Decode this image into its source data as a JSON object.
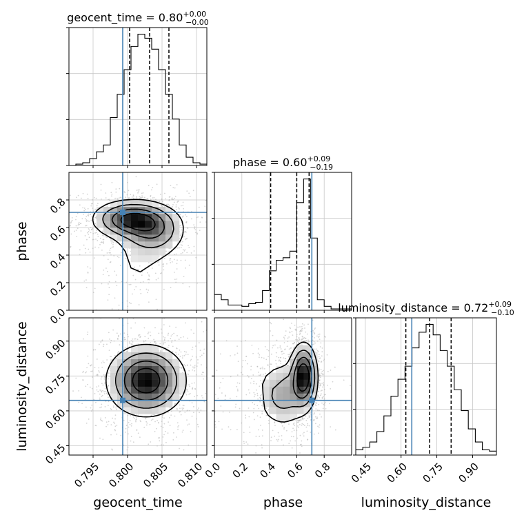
{
  "chart_data": {
    "type": "corner",
    "colors": {
      "truth": "#4682b4",
      "hist": "#000000",
      "grid": "#c8c8c8",
      "scatter": "#b0b0b0"
    },
    "parameters": [
      {
        "name": "geocent_time",
        "range": [
          0.7915,
          0.8115
        ],
        "ticks": [
          "0.795",
          "0.800",
          "0.805",
          "0.810"
        ],
        "tick_values": [
          0.795,
          0.8,
          0.805,
          0.81
        ],
        "truth": 0.7993,
        "quantiles": [
          0.8003,
          0.8032,
          0.806
        ],
        "title": {
          "prefix": "geocent_time = 0.80",
          "sup": "+0.00",
          "sub": "−0.00"
        }
      },
      {
        "name": "phase",
        "range": [
          0.0,
          1.0
        ],
        "ticks": [
          "0.0",
          "0.2",
          "0.4",
          "0.6",
          "0.8"
        ],
        "tick_values": [
          0.0,
          0.2,
          0.4,
          0.6,
          0.8
        ],
        "truth": 0.71,
        "quantiles": [
          0.41,
          0.6,
          0.69
        ],
        "title": {
          "prefix": "phase = 0.60",
          "sup": "+0.09",
          "sub": "−0.19"
        }
      },
      {
        "name": "luminosity_distance",
        "range": [
          0.41,
          1.0
        ],
        "ticks": [
          "0.45",
          "0.60",
          "0.75",
          "0.90"
        ],
        "tick_values": [
          0.45,
          0.6,
          0.75,
          0.9
        ],
        "truth": 0.645,
        "quantiles": [
          0.62,
          0.72,
          0.81
        ],
        "title": {
          "prefix": "luminosity_distance = 0.72",
          "sup": "+0.09",
          "sub": "−0.10"
        }
      }
    ],
    "histograms": [
      {
        "param": "geocent_time",
        "edges": [
          0.7915,
          0.7925,
          0.7935,
          0.7945,
          0.7955,
          0.7965,
          0.7975,
          0.7985,
          0.7995,
          0.8005,
          0.8015,
          0.8025,
          0.8035,
          0.8045,
          0.8055,
          0.8065,
          0.8075,
          0.8085,
          0.8095,
          0.8105,
          0.8115
        ],
        "counts": [
          0,
          1,
          2,
          5,
          10,
          15,
          35,
          52,
          70,
          87,
          96,
          93,
          85,
          70,
          52,
          34,
          15,
          6,
          2,
          1
        ]
      },
      {
        "param": "phase",
        "edges": [
          0.0,
          0.05,
          0.1,
          0.15,
          0.2,
          0.25,
          0.3,
          0.35,
          0.4,
          0.45,
          0.5,
          0.55,
          0.6,
          0.65,
          0.7,
          0.75,
          0.8,
          0.85,
          0.9,
          0.95,
          1.0
        ],
        "counts": [
          12,
          8,
          4,
          4,
          3,
          5,
          6,
          15,
          30,
          38,
          40,
          45,
          82,
          100,
          55,
          8,
          3,
          1,
          1,
          1
        ]
      },
      {
        "param": "luminosity_distance",
        "edges": [
          0.41,
          0.4395,
          0.469,
          0.4985,
          0.528,
          0.5575,
          0.587,
          0.6165,
          0.646,
          0.6755,
          0.705,
          0.7345,
          0.764,
          0.7935,
          0.823,
          0.8525,
          0.882,
          0.9115,
          0.941,
          0.9705,
          1.0
        ],
        "counts": [
          4,
          6,
          10,
          18,
          30,
          45,
          58,
          68,
          82,
          94,
          100,
          92,
          80,
          68,
          50,
          34,
          20,
          10,
          4,
          3
        ]
      }
    ],
    "panels_2d": [
      {
        "x": "geocent_time",
        "y": "phase",
        "blobs": [
          {
            "cx": 0.8005,
            "cy": 0.66,
            "sx": 0.0028,
            "sy": 0.07,
            "w": 1.0
          },
          {
            "cx": 0.8038,
            "cy": 0.58,
            "sx": 0.0024,
            "sy": 0.09,
            "w": 0.55
          },
          {
            "cx": 0.8025,
            "cy": 0.45,
            "sx": 0.003,
            "sy": 0.15,
            "w": 0.15
          },
          {
            "cx": 0.8,
            "cy": 0.2,
            "sx": 0.003,
            "sy": 0.12,
            "w": 0.1
          }
        ]
      },
      {
        "x": "geocent_time",
        "y": "luminosity_distance",
        "blobs": [
          {
            "cx": 0.8027,
            "cy": 0.73,
            "sx": 0.0028,
            "sy": 0.075,
            "w": 1.0
          }
        ]
      },
      {
        "x": "phase",
        "y": "luminosity_distance",
        "blobs": [
          {
            "cx": 0.65,
            "cy": 0.75,
            "sx": 0.05,
            "sy": 0.07,
            "w": 1.0
          },
          {
            "cx": 0.5,
            "cy": 0.67,
            "sx": 0.1,
            "sy": 0.075,
            "w": 0.4
          },
          {
            "cx": 0.15,
            "cy": 0.68,
            "sx": 0.12,
            "sy": 0.08,
            "w": 0.1
          }
        ]
      }
    ]
  }
}
